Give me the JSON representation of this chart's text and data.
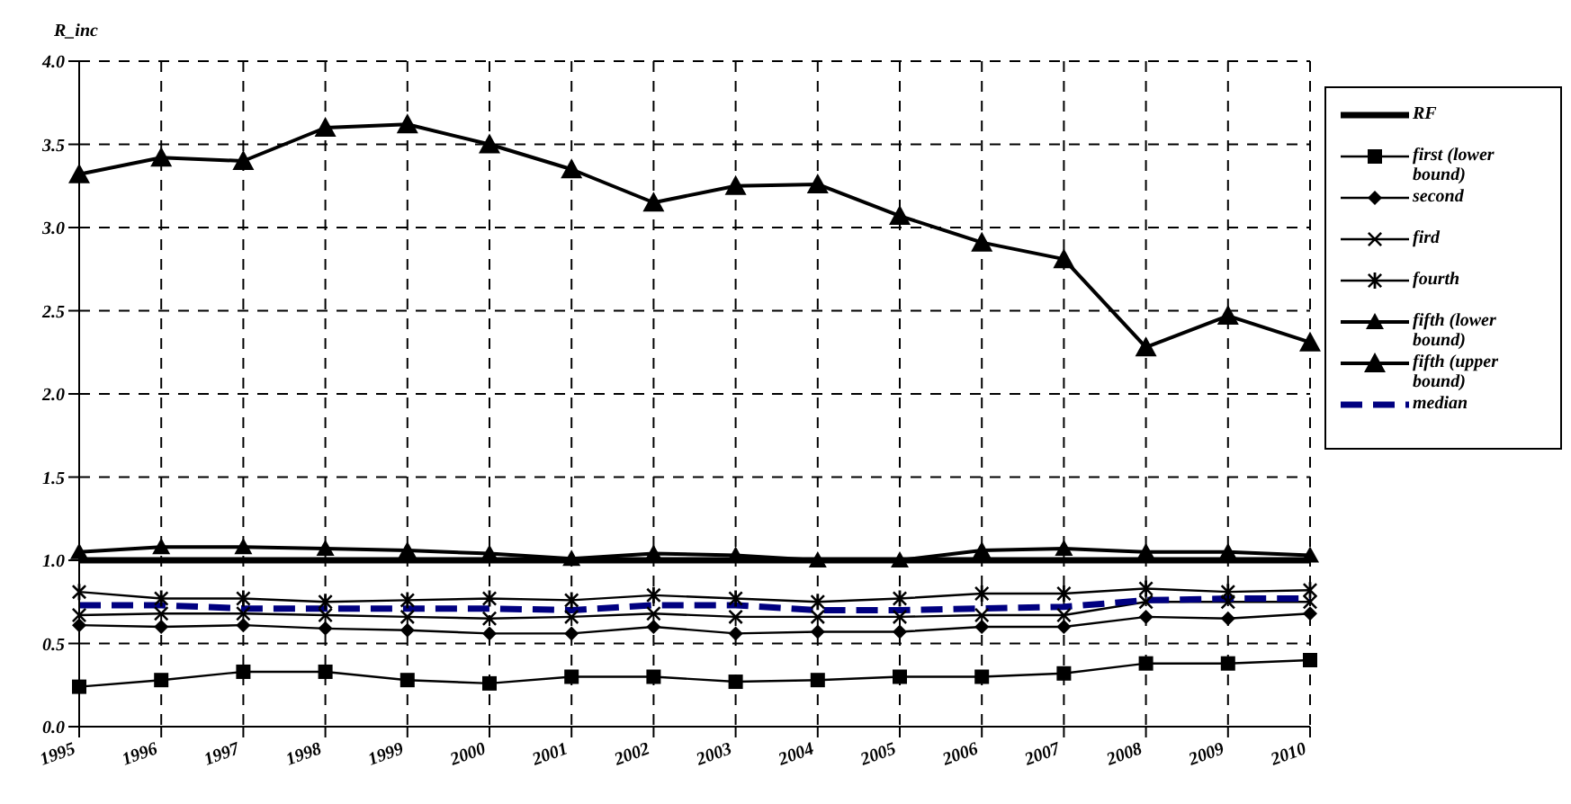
{
  "chart_data": {
    "type": "line",
    "ylabel": "R_inc",
    "categories": [
      "1995",
      "1996",
      "1997",
      "1998",
      "1999",
      "2000",
      "2001",
      "2002",
      "2003",
      "2004",
      "2005",
      "2006",
      "2007",
      "2008",
      "2009",
      "2010"
    ],
    "ylim": [
      0,
      4
    ],
    "yticks": [
      {
        "value": 0,
        "label": "0.0"
      },
      {
        "value": 0.5,
        "label": "0.5"
      },
      {
        "value": 1,
        "label": "1.0"
      },
      {
        "value": 1.5,
        "label": "1.5"
      },
      {
        "value": 2,
        "label": "2.0"
      },
      {
        "value": 2.5,
        "label": "2.5"
      },
      {
        "value": 3,
        "label": "3.0"
      },
      {
        "value": 3.5,
        "label": "3.5"
      },
      {
        "value": 4,
        "label": "4.0"
      }
    ],
    "grid": true,
    "legend": "right",
    "series": [
      {
        "name": "RF",
        "color": "#000000",
        "marker": "none",
        "values": [
          1,
          1,
          1,
          1,
          1,
          1,
          1,
          1,
          1,
          1,
          1,
          1,
          1,
          1,
          1,
          1
        ]
      },
      {
        "name": "first (lower bound)",
        "color": "#000000",
        "marker": "square",
        "values": [
          0.24,
          0.28,
          0.33,
          0.33,
          0.28,
          0.26,
          0.3,
          0.3,
          0.27,
          0.28,
          0.3,
          0.3,
          0.32,
          0.38,
          0.38,
          0.4
        ]
      },
      {
        "name": "second",
        "color": "#000000",
        "marker": "diamond",
        "values": [
          0.61,
          0.6,
          0.61,
          0.59,
          0.58,
          0.56,
          0.56,
          0.6,
          0.56,
          0.57,
          0.57,
          0.6,
          0.6,
          0.66,
          0.65,
          0.68
        ]
      },
      {
        "name": "fird",
        "color": "#000000",
        "marker": "cross",
        "values": [
          0.67,
          0.68,
          0.68,
          0.67,
          0.66,
          0.65,
          0.66,
          0.68,
          0.66,
          0.66,
          0.66,
          0.67,
          0.67,
          0.75,
          0.75,
          0.75
        ]
      },
      {
        "name": "fourth",
        "color": "#000000",
        "marker": "star",
        "values": [
          0.81,
          0.77,
          0.77,
          0.75,
          0.76,
          0.77,
          0.76,
          0.79,
          0.77,
          0.75,
          0.77,
          0.8,
          0.8,
          0.83,
          0.81,
          0.82
        ]
      },
      {
        "name": "fifth (lower bound)",
        "color": "#000000",
        "marker": "triangle",
        "values": [
          1.05,
          1.08,
          1.08,
          1.07,
          1.06,
          1.04,
          1.01,
          1.04,
          1.03,
          1.0,
          1.0,
          1.06,
          1.07,
          1.05,
          1.05,
          1.03
        ]
      },
      {
        "name": "fifth (upper bound)",
        "color": "#000000",
        "marker": "triangle",
        "values": [
          3.32,
          3.42,
          3.4,
          3.6,
          3.62,
          3.5,
          3.35,
          3.15,
          3.25,
          3.26,
          3.07,
          2.91,
          2.81,
          2.28,
          2.47,
          2.31
        ]
      },
      {
        "name": "median",
        "color": "#000080",
        "marker": "none",
        "line_style": "dashed",
        "values": [
          0.73,
          0.73,
          0.71,
          0.71,
          0.71,
          0.71,
          0.7,
          0.73,
          0.73,
          0.7,
          0.7,
          0.71,
          0.72,
          0.76,
          0.77,
          0.77
        ]
      }
    ]
  }
}
